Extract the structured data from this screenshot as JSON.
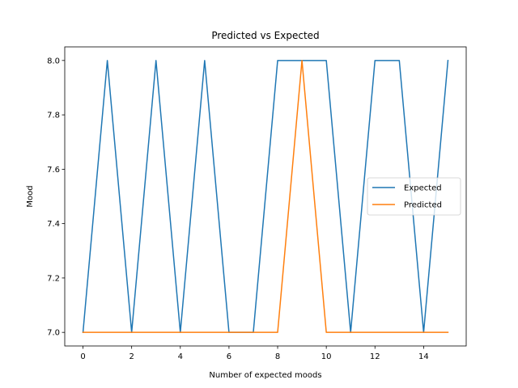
{
  "chart_data": {
    "type": "line",
    "title": "Predicted vs Expected",
    "xlabel": "Number of expected moods",
    "ylabel": "Mood",
    "xlim": [
      -0.75,
      15.75
    ],
    "ylim": [
      6.95,
      8.05
    ],
    "xticks": [
      0,
      2,
      4,
      6,
      8,
      10,
      12,
      14
    ],
    "xtick_labels": [
      "0",
      "2",
      "4",
      "6",
      "8",
      "10",
      "12",
      "14"
    ],
    "yticks": [
      7.0,
      7.2,
      7.4,
      7.6,
      7.8,
      8.0
    ],
    "ytick_labels": [
      "7.0",
      "7.2",
      "7.4",
      "7.6",
      "7.8",
      "8.0"
    ],
    "grid": false,
    "legend_position": "center-right",
    "x": [
      0,
      1,
      2,
      3,
      4,
      5,
      6,
      7,
      8,
      9,
      10,
      11,
      12,
      13,
      14,
      15
    ],
    "series": [
      {
        "name": "Expected",
        "color": "#1f77b4",
        "values": [
          7,
          8,
          7,
          8,
          7,
          8,
          7,
          7,
          8,
          8,
          8,
          7,
          8,
          8,
          7,
          8
        ]
      },
      {
        "name": "Predicted",
        "color": "#ff7f0e",
        "values": [
          7,
          7,
          7,
          7,
          7,
          7,
          7,
          7,
          7,
          8,
          7,
          7,
          7,
          7,
          7,
          7
        ]
      }
    ]
  }
}
